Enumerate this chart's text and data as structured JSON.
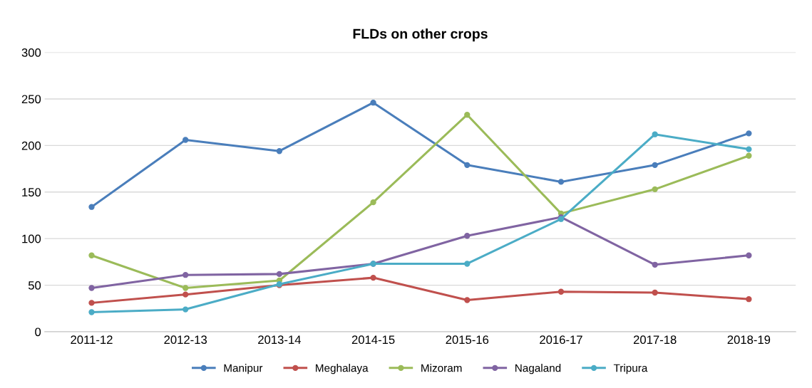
{
  "chart_data": {
    "type": "line",
    "title": "FLDs on other crops",
    "categories": [
      "2011-12",
      "2012-13",
      "2013-14",
      "2014-15",
      "2015-16",
      "2016-17",
      "2017-18",
      "2018-19"
    ],
    "series": [
      {
        "name": "Manipur",
        "color": "#4a7ebb",
        "values": [
          134,
          206,
          194,
          246,
          179,
          161,
          179,
          213
        ]
      },
      {
        "name": "Meghalaya",
        "color": "#c0504d",
        "values": [
          31,
          40,
          50,
          58,
          34,
          43,
          42,
          35
        ]
      },
      {
        "name": "Mizoram",
        "color": "#9bbb59",
        "values": [
          82,
          47,
          55,
          139,
          233,
          127,
          153,
          189
        ]
      },
      {
        "name": "Nagaland",
        "color": "#8064a2",
        "values": [
          47,
          61,
          62,
          73,
          103,
          123,
          72,
          82
        ]
      },
      {
        "name": "Tripura",
        "color": "#4bacc6",
        "values": [
          21,
          24,
          51,
          73,
          73,
          121,
          212,
          196
        ]
      }
    ],
    "ylim": [
      0,
      300
    ],
    "yticks": [
      0,
      50,
      100,
      150,
      200,
      250,
      300
    ],
    "grid": "y",
    "legend": "bottom",
    "marker": "circle",
    "line_style": "solid"
  }
}
